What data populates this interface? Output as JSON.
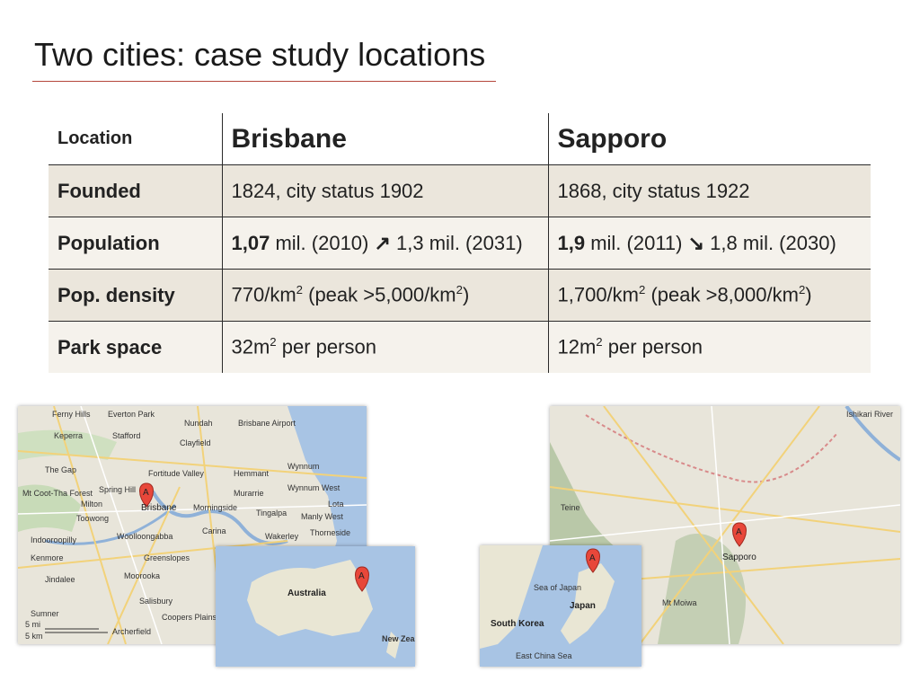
{
  "slide": {
    "title": "Two cities: case study locations"
  },
  "table": {
    "header": {
      "label": "Location",
      "city1": "Brisbane",
      "city2": "Sapporo"
    },
    "rows": {
      "founded": {
        "label": "Founded",
        "city1": "1824, city status 1902",
        "city2": "1868, city status 1922"
      },
      "population": {
        "label": "Population",
        "city1": {
          "value": "1,07",
          "rest": " mil. (2010) ",
          "trend_icon": "↗",
          "projection": " 1,3 mil. (2031)"
        },
        "city2": {
          "value": "1,9",
          "rest": " mil. (2011) ",
          "trend_icon": "↘",
          "projection": " 1,8 mil. (2030)"
        }
      },
      "density": {
        "label": "Pop. density",
        "city1": {
          "a": "770/km",
          "sup1": "2",
          "b": " (peak >5,000/km",
          "sup2": "2",
          "c": ")"
        },
        "city2": {
          "a": "1,700/km",
          "sup1": "2",
          "b": " (peak >8,000/km",
          "sup2": "2",
          "c": ")"
        }
      },
      "park": {
        "label": "Park space",
        "city1": {
          "a": "32m",
          "sup": "2",
          "b": " per person"
        },
        "city2": {
          "a": "12m",
          "sup": "2",
          "b": " per person"
        }
      }
    }
  },
  "maps": {
    "brisbane": {
      "marker": "A",
      "labels": {
        "ferny_hills": "Ferny Hills",
        "everton_park": "Everton Park",
        "nundah": "Nundah",
        "brisbane_airport": "Brisbane Airport",
        "keperra": "Keperra",
        "stafford": "Stafford",
        "clayfield": "Clayfield",
        "the_gap": "The Gap",
        "fortitude_valley": "Fortitude Valley",
        "hemmant": "Hemmant",
        "wynnum": "Wynnum",
        "wynnum_west": "Wynnum West",
        "spring_hill": "Spring Hill",
        "mt_coot_tha": "Mt Coot-Tha Forest",
        "milton": "Milton",
        "brisbane": "Brisbane",
        "morningside": "Morningside",
        "murarrie": "Murarrie",
        "tingalpa": "Tingalpa",
        "lota": "Lota",
        "manly_west": "Manly West",
        "toowong": "Toowong",
        "indooroopilly": "Indooroopilly",
        "woolloongabba": "Woolloongabba",
        "carina": "Carina",
        "wakerley": "Wakerley",
        "thorneside": "Thorneside",
        "kenmore": "Kenmore",
        "greenslopes": "Greenslopes",
        "jindalee": "Jindalee",
        "moorooka": "Moorooka",
        "salisbury": "Salisbury",
        "sumner": "Sumner",
        "coopers_plains": "Coopers Plains",
        "archerfield": "Archerfield",
        "scale_mi": "5 mi",
        "scale_km": "5 km"
      },
      "inset": {
        "australia": "Australia",
        "new_zealand": "New Zealand",
        "marker": "A"
      }
    },
    "sapporo": {
      "marker": "A",
      "labels": {
        "ishikari_river": "Ishikari River",
        "teine": "Teine",
        "sapporo": "Sapporo",
        "mt_moiwa": "Mt Moiwa"
      },
      "inset": {
        "sea_of_japan": "Sea of Japan",
        "south_korea": "South Korea",
        "japan": "Japan",
        "east_china_sea": "East China Sea",
        "marker": "A"
      }
    }
  },
  "colors": {
    "title_rule": "#b5473c",
    "row_dark": "#ebe6dc",
    "row_light": "#f5f2ec",
    "marker": "#e8473a",
    "water": "#a8c4e4",
    "land": "#e9e6dc"
  }
}
